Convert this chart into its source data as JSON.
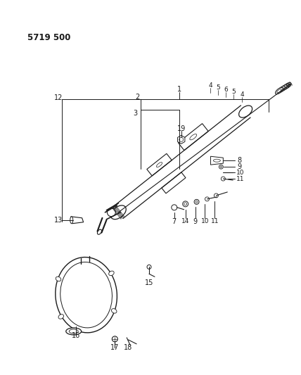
{
  "title": "5719 500",
  "bg_color": "#ffffff",
  "fg_color": "#1a1a1a",
  "title_fontsize": 8.5,
  "title_fontweight": "bold",
  "label_fontsize": 6.5
}
